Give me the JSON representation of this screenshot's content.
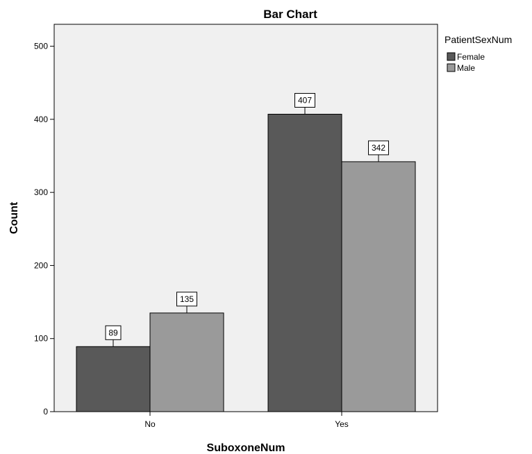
{
  "chart_data": {
    "type": "bar",
    "title": "Bar Chart",
    "xlabel": "SuboxoneNum",
    "ylabel": "Count",
    "categories": [
      "No",
      "Yes"
    ],
    "series": [
      {
        "name": "Female",
        "values": [
          89,
          407
        ],
        "color": "#595959"
      },
      {
        "name": "Male",
        "values": [
          135,
          342
        ],
        "color": "#9a9a9a"
      }
    ],
    "ylim": [
      0,
      530
    ],
    "yticks": [
      0,
      100,
      200,
      300,
      400,
      500
    ],
    "legend": {
      "title": "PatientSexNum",
      "placement": "top-right-outside"
    },
    "plot_background": "#f0f0f0",
    "grid": false,
    "data_labels": true
  }
}
